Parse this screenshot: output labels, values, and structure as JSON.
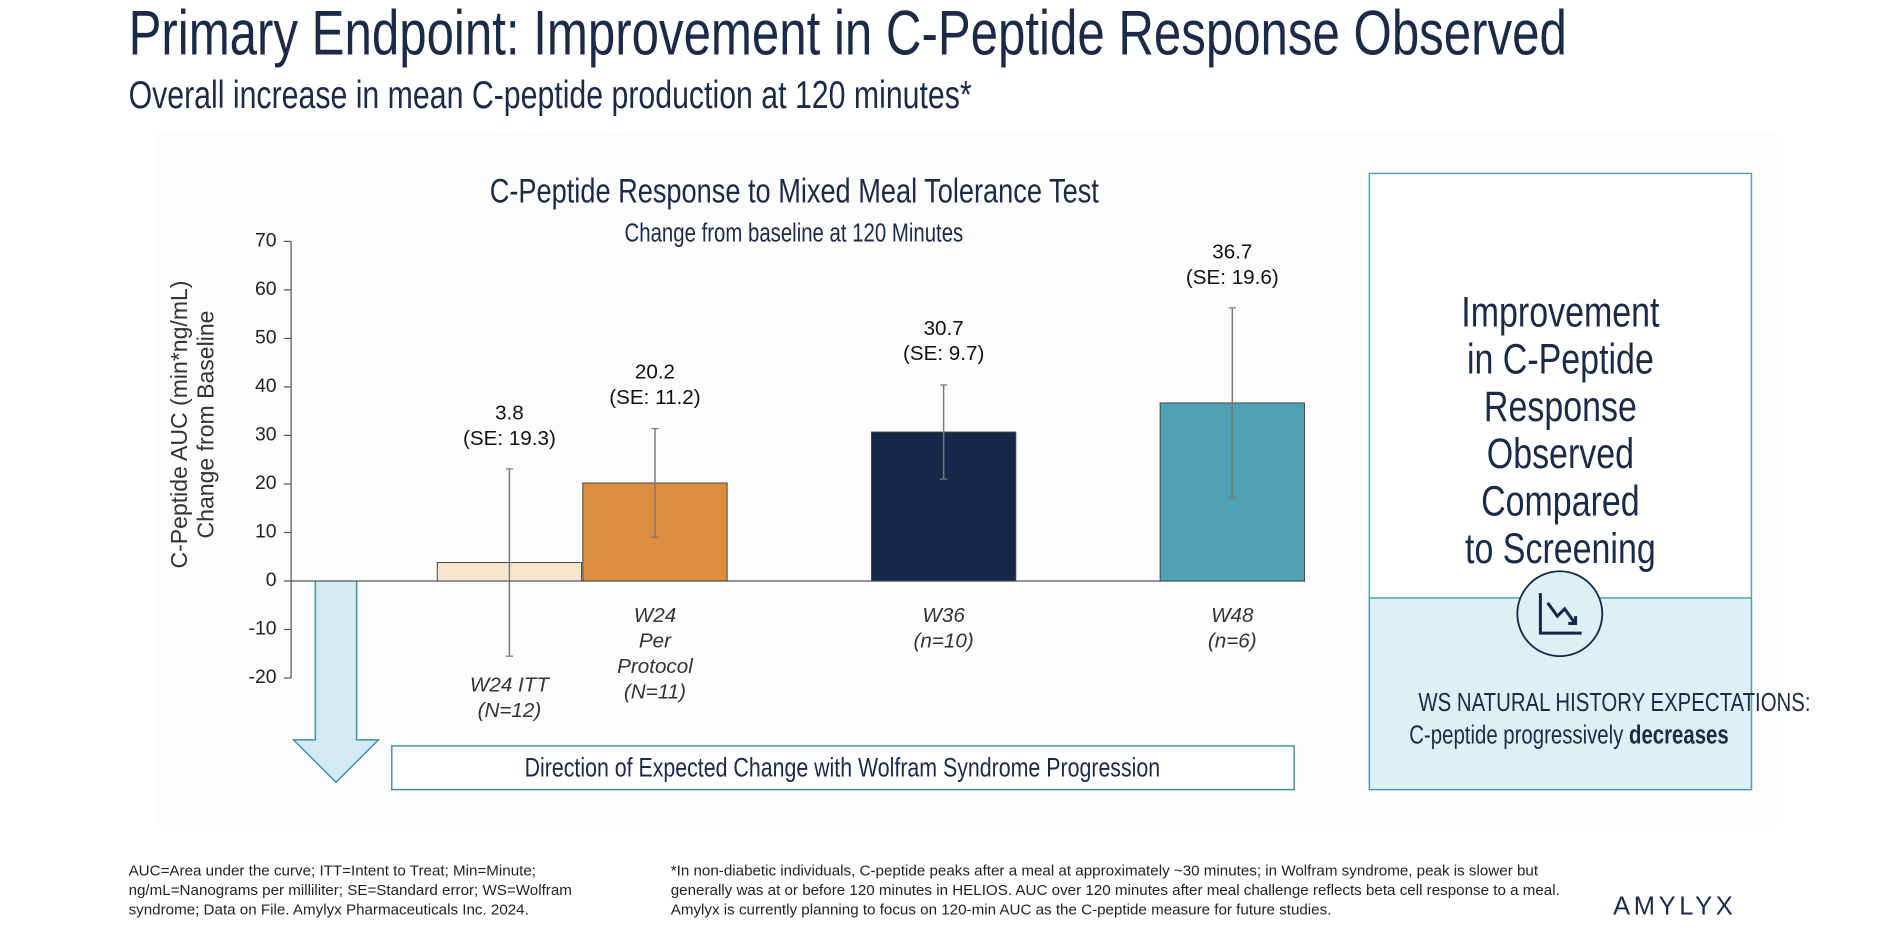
{
  "header": {
    "title": "Primary Endpoint: Improvement in C-Peptide Response Observed",
    "subtitle": "Overall increase in mean C-peptide production at 120 minutes*"
  },
  "chart_data": {
    "type": "bar",
    "title": "C-Peptide Response to Mixed Meal Tolerance Test",
    "subtitle": "Change from baseline at 120 Minutes",
    "ylabel": [
      "C-Peptide AUC (min*ng/mL)",
      "Change from Baseline"
    ],
    "categories": [
      "W24 ITT\n(N=12)",
      "W24\nPer\nProtocol\n(N=11)",
      "W36\n(n=10)",
      "W48\n(n=6)"
    ],
    "values": [
      3.8,
      20.2,
      30.7,
      36.7
    ],
    "errors": [
      19.3,
      11.2,
      9.7,
      19.6
    ],
    "value_labels": [
      "3.8\n(SE: 19.3)",
      "20.2\n(SE: 11.2)",
      "30.7\n(SE: 9.7)",
      "36.7\n(SE: 19.6)"
    ],
    "colors": [
      "#f8e7cf",
      "#dc8d3d",
      "#17294a",
      "#4fa2b4"
    ],
    "ylim": [
      -20,
      70
    ],
    "yticks": [
      -20,
      -10,
      0,
      10,
      20,
      30,
      40,
      50,
      60,
      70
    ],
    "grid": false,
    "arrow_text": "Direction of Expected Change with Wolfram Syndrome Progression"
  },
  "panel": {
    "heading": "Improvement\nin C-Peptide Response\nObserved Compared\nto Screening",
    "note_heading": "WS NATURAL HISTORY EXPECTATIONS:",
    "note_text": "C-peptide progressively ",
    "note_bold": "decreases"
  },
  "footnotes": {
    "left": "AUC=Area under the curve; ITT=Intent to Treat; Min=Minute; ng/mL=Nanograms per milliliter; SE=Standard error; WS=Wolfram syndrome; Data on File. Amylyx Pharmaceuticals Inc. 2024.",
    "right": "*In non-diabetic individuals, C-peptide peaks after a meal at approximately ~30 minutes; in Wolfram syndrome, peak is slower but generally was at or before 120 minutes in HELIOS. AUC over 120 minutes after meal challenge reflects beta cell response to a meal. Amylyx is currently planning to focus on 120-min AUC as the C-peptide measure for future studies.",
    "logo": "AMYLYX"
  }
}
